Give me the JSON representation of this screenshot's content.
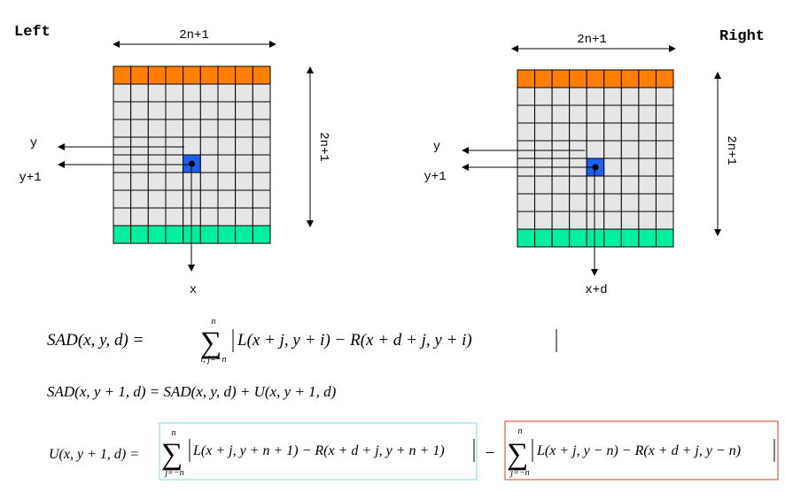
{
  "left": {
    "title": "Left",
    "width_label": "2n+1",
    "height_label": "2n+1",
    "row_label_y": "y",
    "row_label_y1": "y+1",
    "col_label": "x"
  },
  "right": {
    "title": "Right",
    "width_label": "2n+1",
    "height_label": "2n+1",
    "row_label_y": "y",
    "row_label_y1": "y+1",
    "col_label": "x+d"
  },
  "grid": {
    "columns": 9,
    "rows": 10
  },
  "colors": {
    "top_row": "#ff8000",
    "bottom_row": "#00f0a0",
    "cell": "#e6e6e6",
    "center_cell": "#1e5ef0",
    "box1_border": "#7fdcdc",
    "box2_border": "#d04020"
  },
  "eq1": {
    "lhs": "SAD(x, y, d) =",
    "sum_upper": "n",
    "sum_lower": "i, j=−n",
    "body": "L(x + j, y + i) − R(x + d + j, y + i)"
  },
  "eq2": {
    "text": "SAD(x, y + 1, d) = SAD(x, y, d) + U(x, y + 1, d)"
  },
  "eq3": {
    "lhs": "U(x, y + 1, d) =",
    "term1_upper": "n",
    "term1_lower": "j=−n",
    "term1_body": "L(x + j, y + n + 1) − R(x + d + j, y + n + 1)",
    "minus": "−",
    "term2_upper": "n",
    "term2_lower": "j=−n",
    "term2_body": "L(x + j, y − n) − R(x + d + j, y − n)"
  }
}
